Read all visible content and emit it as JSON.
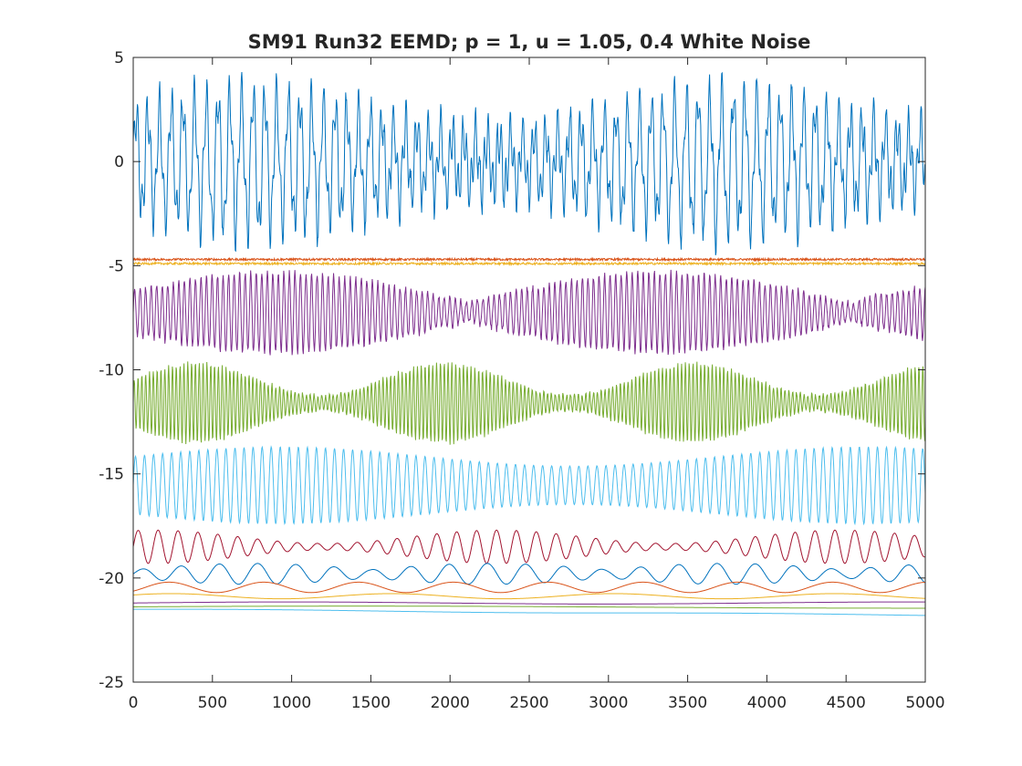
{
  "chart_data": {
    "type": "line",
    "title": "SM91 Run32 EEMD; p = 1, u = 1.05, 0.4 White Noise",
    "xlabel": "",
    "ylabel": "",
    "xlim": [
      0,
      5000
    ],
    "ylim": [
      -25,
      5
    ],
    "grid": false,
    "legend": "none",
    "x_ticks": [
      0,
      500,
      1000,
      1500,
      2000,
      2500,
      3000,
      3500,
      4000,
      4500,
      5000
    ],
    "x_tick_labels": [
      "0",
      "500",
      "1000",
      "1500",
      "2000",
      "2500",
      "3000",
      "3500",
      "4000",
      "4500",
      "5000"
    ],
    "y_ticks": [
      5,
      0,
      -5,
      -10,
      -15,
      -20,
      -25
    ],
    "y_tick_labels": [
      "5",
      "0",
      "-5",
      "-10",
      "-15",
      "-20",
      "-25"
    ],
    "series": [
      {
        "color": "#0072BD",
        "offset": 0.0,
        "character": "broadband",
        "amplitude_range": [
          -4.5,
          4.3
        ]
      },
      {
        "color": "#D95319",
        "offset": -4.7,
        "character": "high-frequency noise",
        "amplitude_range": [
          -4.75,
          -4.65
        ]
      },
      {
        "color": "#EDB120",
        "offset": -4.9,
        "character": "high-frequency noise",
        "amplitude_range": [
          -4.95,
          -4.85
        ]
      },
      {
        "color": "#7E2F8E",
        "offset": -7.3,
        "character": "modulated oscillation",
        "amplitude_range": [
          -9.3,
          -5.2
        ]
      },
      {
        "color": "#77AC30",
        "offset": -11.5,
        "character": "fast oscillation",
        "amplitude_range": [
          -13.6,
          -9.6
        ]
      },
      {
        "color": "#4DBEEE",
        "offset": -15.8,
        "character": "oscillation",
        "amplitude_range": [
          -17.4,
          -13.7
        ]
      },
      {
        "color": "#A2142F",
        "offset": -18.6,
        "character": "slow oscillation",
        "amplitude_range": [
          -19.3,
          -17.7
        ]
      },
      {
        "color": "#0072BD",
        "offset": -19.8,
        "character": "slower oscillation",
        "amplitude_range": [
          -20.3,
          -19.3
        ]
      },
      {
        "color": "#D95319",
        "offset": -20.5,
        "character": "long-period wave",
        "amplitude_range": [
          -20.7,
          -20.2
        ]
      },
      {
        "color": "#EDB120",
        "offset": -20.9,
        "character": "long-period wave",
        "amplitude_range": [
          -21.0,
          -20.75
        ]
      },
      {
        "color": "#7E2F8E",
        "offset": -21.2,
        "character": "near-constant trend",
        "amplitude_range": [
          -21.25,
          -21.15
        ]
      },
      {
        "color": "#77AC30",
        "offset": -21.4,
        "character": "near-constant trend",
        "amplitude_range": [
          -21.45,
          -21.35
        ]
      },
      {
        "color": "#4DBEEE",
        "offset": -21.6,
        "character": "residual trend",
        "amplitude_range": [
          -21.8,
          -21.5
        ]
      }
    ]
  }
}
